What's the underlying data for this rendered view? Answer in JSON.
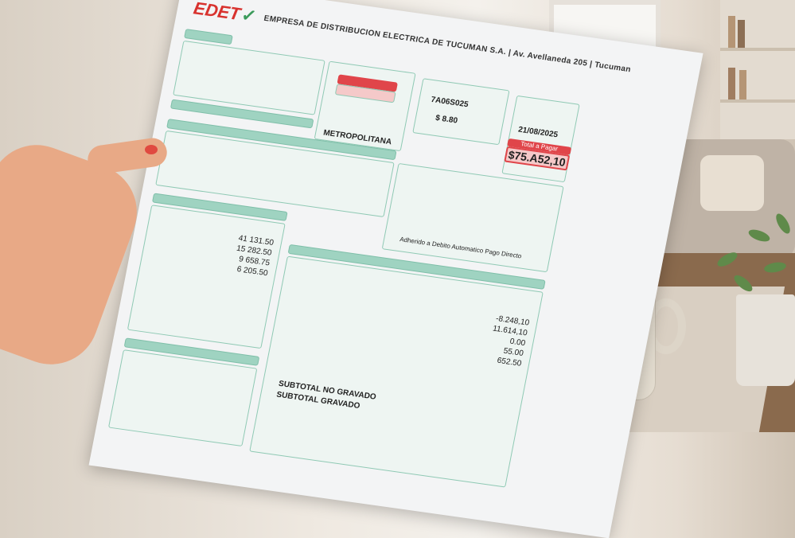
{
  "bill": {
    "logo": "EDET",
    "company": "EMPRESA DE DISTRIBUCION ELECTRICA DE TUCUMAN S.A. | Av. Avellaneda 205 | Tucuman",
    "account_number": "7A06S025",
    "amount_small": "$ 8.80",
    "due_date": "21/08/2025",
    "total_label": "Total a Pagar",
    "total": "$75.A52,10",
    "zone": "METROPOLITANA",
    "consumption_values": [
      "41 131.50",
      "15 282.50",
      "9 658.75",
      "6 205.50"
    ],
    "charges_values": [
      "-8.248,10",
      "11.614,10",
      "0.00",
      "55.00",
      "652.50"
    ],
    "adhesion_text": "Adherido a Debito Automatico Pago Directo",
    "subtotal_no_gravado": "SUBTOTAL NO GRAVADO",
    "subtotal_gravado": "SUBTOTAL GRAVADO",
    "colors": {
      "accent": "#9fd3c1",
      "alert": "#e0454a",
      "brand": "#d8322e"
    }
  }
}
